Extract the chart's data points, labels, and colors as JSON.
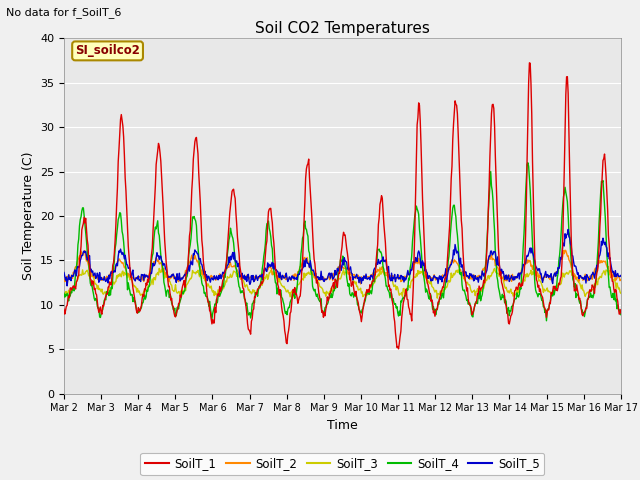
{
  "title": "Soil CO2 Temperatures",
  "xlabel": "Time",
  "ylabel": "Soil Temperature (C)",
  "top_left_text": "No data for f_SoilT_6",
  "annotation_text": "SI_soilco2",
  "ylim": [
    0,
    40
  ],
  "yticks": [
    0,
    5,
    10,
    15,
    20,
    25,
    30,
    35,
    40
  ],
  "x_labels": [
    "Mar 2",
    "Mar 3",
    "Mar 4",
    "Mar 5",
    "Mar 6",
    "Mar 7",
    "Mar 8",
    "Mar 9",
    "Mar 10",
    "Mar 11",
    "Mar 12",
    "Mar 13",
    "Mar 14",
    "Mar 15",
    "Mar 16",
    "Mar 17"
  ],
  "colors": {
    "SoilT_1": "#dd0000",
    "SoilT_2": "#ff8800",
    "SoilT_3": "#cccc00",
    "SoilT_4": "#00bb00",
    "SoilT_5": "#0000cc"
  },
  "background_color": "#e8e8e8",
  "fig_background": "#f0f0f0",
  "annotation_bg": "#ffffbb",
  "annotation_border": "#aa8800"
}
